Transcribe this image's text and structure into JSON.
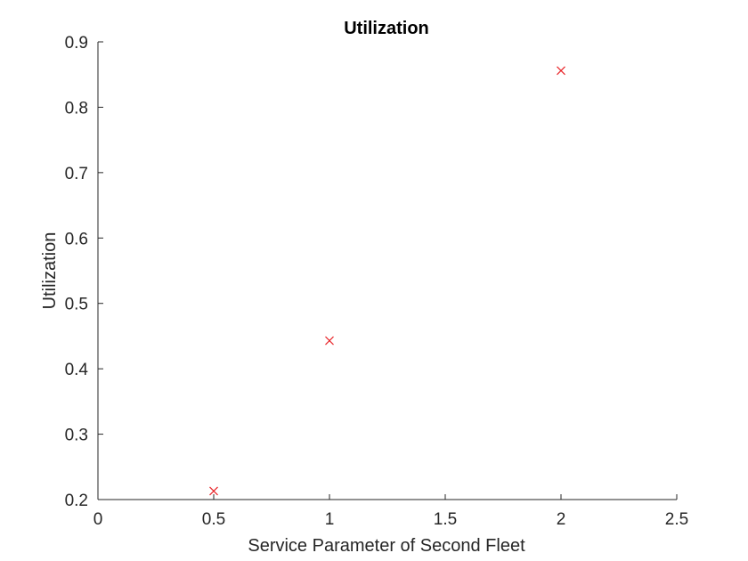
{
  "chart_data": {
    "type": "scatter",
    "title": "Utilization",
    "xlabel": "Service Parameter of Second Fleet",
    "ylabel": "Utilization",
    "xlim": [
      0,
      2.5
    ],
    "ylim": [
      0.2,
      0.9
    ],
    "x_ticks": [
      "0",
      "0.5",
      "1",
      "1.5",
      "2",
      "2.5"
    ],
    "y_ticks": [
      "0.2",
      "0.3",
      "0.4",
      "0.5",
      "0.6",
      "0.7",
      "0.8",
      "0.9"
    ],
    "grid": false,
    "marker": "x",
    "marker_color": "#e8262a",
    "axis_color": "#262626",
    "series": [
      {
        "x": [
          0.5,
          1,
          2
        ],
        "y": [
          0.213,
          0.443,
          0.856
        ]
      }
    ]
  }
}
